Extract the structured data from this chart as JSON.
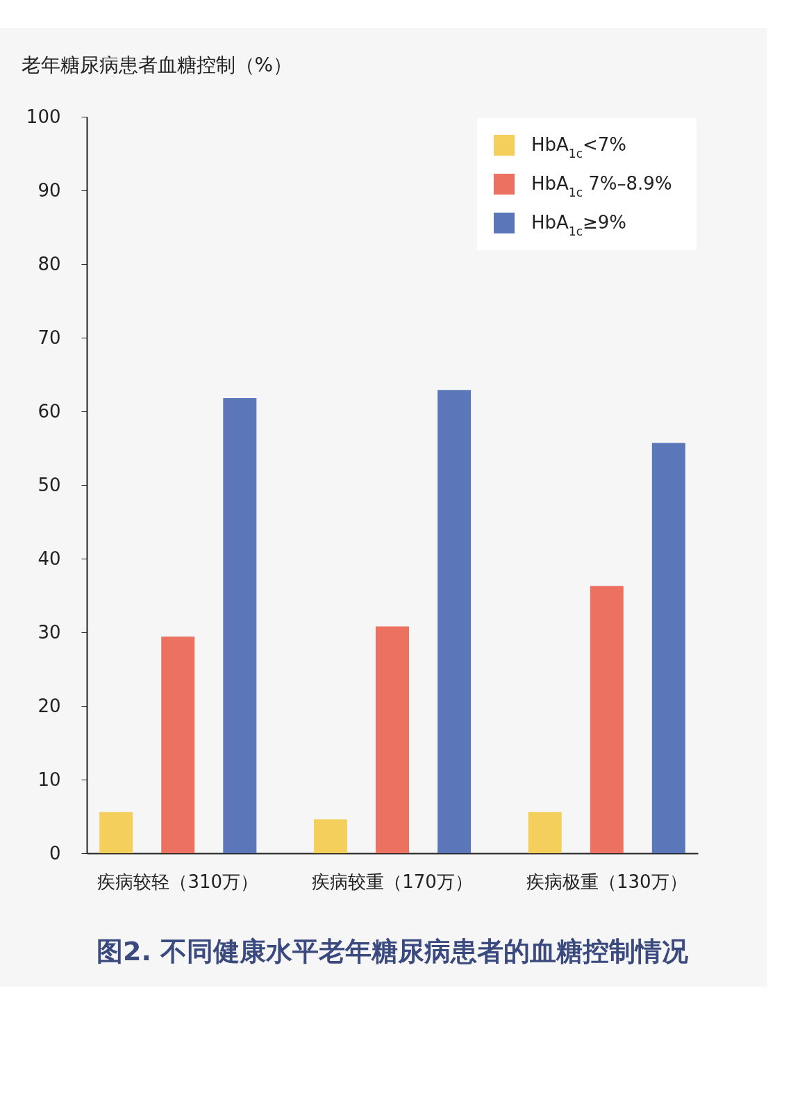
{
  "chart_data": {
    "type": "bar",
    "title": "图2. 不同健康水平老年糖尿病患者的血糖控制情况",
    "ylabel": "老年糖尿病患者血糖控制（%）",
    "categories": [
      "疾病较轻（310万）",
      "疾病较重（170万）",
      "疾病极重（130万）"
    ],
    "series": [
      {
        "name": "HbA$_{1c}$<7%",
        "color": "#f4cf5b",
        "values": [
          5.6,
          4.6,
          5.6
        ]
      },
      {
        "name": "HbA$_{1c}$ 7%–8.9%",
        "color": "#ec7160",
        "values": [
          29.4,
          30.8,
          36.3
        ]
      },
      {
        "name": "HbA$_{1c}$≥9%",
        "color": "#5b77ba",
        "values": [
          61.8,
          62.9,
          55.7
        ]
      }
    ],
    "ylim": [
      0,
      100
    ],
    "yticks": [
      0,
      10,
      20,
      30,
      40,
      50,
      60,
      70,
      80,
      90,
      100
    ],
    "grid": false,
    "legend": "top right"
  }
}
